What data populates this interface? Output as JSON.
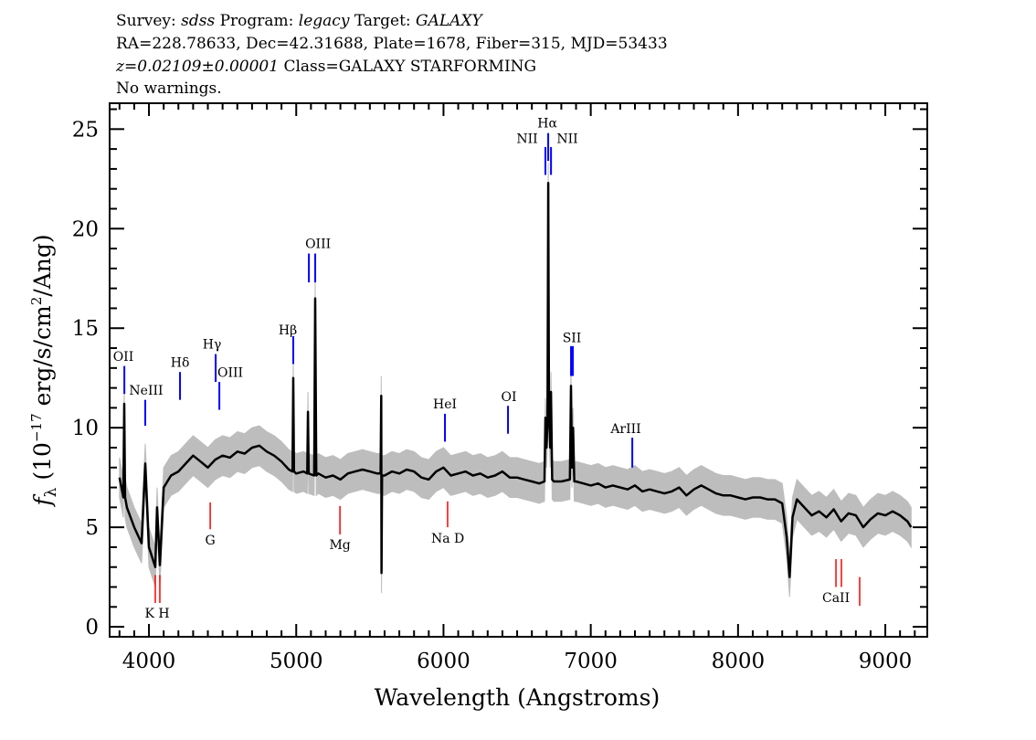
{
  "header": {
    "line1": {
      "a": "Survey: ",
      "b": "sdss",
      "c": " Program: ",
      "d": "legacy",
      "e": " Target: ",
      "f": "GALAXY"
    },
    "line2": "RA=228.78633, Dec=42.31688, Plate=1678, Fiber=315, MJD=53433",
    "line3": {
      "a": "z=0.02109±0.00001",
      "b": " Class=GALAXY STARFORMING"
    },
    "line4": "No warnings."
  },
  "chart_data": {
    "type": "line",
    "xlabel": "Wavelength (Angstroms)",
    "ylabel": {
      "f": "f",
      "sub": "λ",
      "a": " (10",
      "sup1": "−17",
      "b": " erg/s/cm",
      "sup2": "2",
      "c": "/Ang)"
    },
    "xlim": [
      3733,
      9285
    ],
    "ylim": [
      -0.5,
      26.3
    ],
    "xticks": [
      "4000",
      "5000",
      "6000",
      "7000",
      "8000",
      "9000"
    ],
    "yticks": [
      "0",
      "5",
      "10",
      "15",
      "20",
      "25"
    ],
    "x_minor_step": 100,
    "y_minor_step": 1,
    "grid": false,
    "colors": {
      "flux": "#000000",
      "error": "#bdbdbd",
      "emission": "#0000ff",
      "absorption": "#ff0000"
    },
    "error_typical": 1.0,
    "flux": [
      [
        3800,
        7.5
      ],
      [
        3826,
        6.5
      ],
      [
        3832,
        11.2
      ],
      [
        3838,
        6.5
      ],
      [
        3850,
        6.0
      ],
      [
        3900,
        5.0
      ],
      [
        3950,
        4.2
      ],
      [
        3975,
        8.2
      ],
      [
        4000,
        4.0
      ],
      [
        4043,
        3.0
      ],
      [
        4055,
        6.0
      ],
      [
        4074,
        3.1
      ],
      [
        4100,
        7.0
      ],
      [
        4150,
        7.6
      ],
      [
        4200,
        7.8
      ],
      [
        4250,
        8.2
      ],
      [
        4300,
        8.6
      ],
      [
        4350,
        8.3
      ],
      [
        4400,
        8.0
      ],
      [
        4450,
        8.4
      ],
      [
        4500,
        8.6
      ],
      [
        4550,
        8.5
      ],
      [
        4600,
        8.8
      ],
      [
        4650,
        8.7
      ],
      [
        4700,
        9.0
      ],
      [
        4750,
        9.1
      ],
      [
        4800,
        8.8
      ],
      [
        4850,
        8.6
      ],
      [
        4900,
        8.3
      ],
      [
        4950,
        7.9
      ],
      [
        4975,
        7.8
      ],
      [
        4980,
        12.5
      ],
      [
        4985,
        7.8
      ],
      [
        5000,
        7.7
      ],
      [
        5050,
        7.8
      ],
      [
        5075,
        7.7
      ],
      [
        5080,
        10.8
      ],
      [
        5085,
        7.7
      ],
      [
        5122,
        7.6
      ],
      [
        5129,
        16.5
      ],
      [
        5136,
        7.6
      ],
      [
        5150,
        7.7
      ],
      [
        5200,
        7.5
      ],
      [
        5250,
        7.6
      ],
      [
        5300,
        7.4
      ],
      [
        5350,
        7.7
      ],
      [
        5400,
        7.8
      ],
      [
        5450,
        7.9
      ],
      [
        5500,
        7.8
      ],
      [
        5550,
        7.7
      ],
      [
        5573,
        7.7
      ],
      [
        5577,
        11.6
      ],
      [
        5579,
        2.7
      ],
      [
        5583,
        7.6
      ],
      [
        5600,
        7.6
      ],
      [
        5650,
        7.8
      ],
      [
        5700,
        7.7
      ],
      [
        5750,
        7.9
      ],
      [
        5800,
        7.8
      ],
      [
        5850,
        7.5
      ],
      [
        5900,
        7.4
      ],
      [
        5950,
        7.8
      ],
      [
        6000,
        8.0
      ],
      [
        6050,
        7.6
      ],
      [
        6100,
        7.7
      ],
      [
        6150,
        7.8
      ],
      [
        6200,
        7.6
      ],
      [
        6250,
        7.7
      ],
      [
        6300,
        7.5
      ],
      [
        6350,
        7.6
      ],
      [
        6400,
        7.8
      ],
      [
        6450,
        7.5
      ],
      [
        6500,
        7.5
      ],
      [
        6550,
        7.4
      ],
      [
        6600,
        7.3
      ],
      [
        6650,
        7.2
      ],
      [
        6686,
        7.3
      ],
      [
        6692,
        10.5
      ],
      [
        6700,
        9.0
      ],
      [
        6706,
        10.5
      ],
      [
        6711,
        22.3
      ],
      [
        6716,
        11.0
      ],
      [
        6724,
        9.0
      ],
      [
        6730,
        11.8
      ],
      [
        6738,
        7.4
      ],
      [
        6750,
        7.3
      ],
      [
        6800,
        7.3
      ],
      [
        6858,
        7.4
      ],
      [
        6866,
        12.1
      ],
      [
        6872,
        8.0
      ],
      [
        6880,
        10.0
      ],
      [
        6888,
        7.3
      ],
      [
        6900,
        7.3
      ],
      [
        6950,
        7.2
      ],
      [
        7000,
        7.1
      ],
      [
        7050,
        7.2
      ],
      [
        7100,
        7.0
      ],
      [
        7150,
        7.1
      ],
      [
        7200,
        7.0
      ],
      [
        7250,
        6.9
      ],
      [
        7300,
        7.1
      ],
      [
        7350,
        6.8
      ],
      [
        7400,
        6.9
      ],
      [
        7450,
        6.8
      ],
      [
        7500,
        6.7
      ],
      [
        7550,
        6.8
      ],
      [
        7600,
        7.0
      ],
      [
        7650,
        6.6
      ],
      [
        7700,
        6.9
      ],
      [
        7750,
        7.1
      ],
      [
        7800,
        6.9
      ],
      [
        7850,
        6.7
      ],
      [
        7900,
        6.6
      ],
      [
        7950,
        6.6
      ],
      [
        8000,
        6.5
      ],
      [
        8050,
        6.4
      ],
      [
        8100,
        6.5
      ],
      [
        8150,
        6.5
      ],
      [
        8200,
        6.4
      ],
      [
        8250,
        6.4
      ],
      [
        8300,
        6.2
      ],
      [
        8330,
        4.5
      ],
      [
        8350,
        2.5
      ],
      [
        8370,
        5.5
      ],
      [
        8400,
        6.4
      ],
      [
        8450,
        6.0
      ],
      [
        8500,
        5.6
      ],
      [
        8550,
        5.8
      ],
      [
        8600,
        5.5
      ],
      [
        8650,
        5.9
      ],
      [
        8700,
        5.3
      ],
      [
        8750,
        5.7
      ],
      [
        8800,
        5.6
      ],
      [
        8850,
        5.0
      ],
      [
        8900,
        5.4
      ],
      [
        8950,
        5.7
      ],
      [
        9000,
        5.6
      ],
      [
        9050,
        5.8
      ],
      [
        9100,
        5.6
      ],
      [
        9150,
        5.3
      ],
      [
        9175,
        5.0
      ]
    ],
    "line_markers": [
      {
        "wavelength": 3833,
        "flux": [
          11.7,
          13.1
        ],
        "type": "emission"
      },
      {
        "wavelength": 3975,
        "flux": [
          10.1,
          11.4
        ],
        "type": "emission"
      },
      {
        "wavelength": 4211,
        "flux": [
          11.4,
          12.8
        ],
        "type": "emission"
      },
      {
        "wavelength": 4453,
        "flux": [
          12.3,
          13.7
        ],
        "type": "emission"
      },
      {
        "wavelength": 4478,
        "flux": [
          10.9,
          12.3
        ],
        "type": "emission"
      },
      {
        "wavelength": 4980,
        "flux": [
          13.2,
          14.6
        ],
        "type": "emission"
      },
      {
        "wavelength": 5086,
        "flux": [
          17.3,
          18.75
        ],
        "type": "emission"
      },
      {
        "wavelength": 5129,
        "flux": [
          17.3,
          18.75
        ],
        "type": "emission"
      },
      {
        "wavelength": 6010,
        "flux": [
          9.3,
          10.7
        ],
        "type": "emission"
      },
      {
        "wavelength": 6438,
        "flux": [
          9.7,
          11.1
        ],
        "type": "emission"
      },
      {
        "wavelength": 6692,
        "flux": [
          22.7,
          24.1
        ],
        "type": "emission"
      },
      {
        "wavelength": 6711,
        "flux": [
          23.4,
          24.8
        ],
        "type": "emission"
      },
      {
        "wavelength": 6730,
        "flux": [
          22.7,
          24.1
        ],
        "type": "emission"
      },
      {
        "wavelength": 6866,
        "flux": [
          12.6,
          14.1
        ],
        "type": "emission"
      },
      {
        "wavelength": 6878,
        "flux": [
          12.6,
          14.1
        ],
        "type": "emission"
      },
      {
        "wavelength": 7282,
        "flux": [
          8.0,
          9.5
        ],
        "type": "emission"
      },
      {
        "wavelength": 4416,
        "flux": [
          4.9,
          6.25
        ],
        "type": "absorption"
      },
      {
        "wavelength": 4043,
        "flux": [
          1.2,
          2.6
        ],
        "type": "absorption"
      },
      {
        "wavelength": 4074,
        "flux": [
          1.2,
          2.6
        ],
        "type": "absorption"
      },
      {
        "wavelength": 5297,
        "flux": [
          4.64,
          6.07
        ],
        "type": "absorption"
      },
      {
        "wavelength": 6028,
        "flux": [
          5.0,
          6.3
        ],
        "type": "absorption"
      },
      {
        "wavelength": 8665,
        "flux": [
          2.0,
          3.4
        ],
        "type": "absorption"
      },
      {
        "wavelength": 8702,
        "flux": [
          2.0,
          3.4
        ],
        "type": "absorption"
      },
      {
        "wavelength": 8826,
        "flux": [
          1.05,
          2.5
        ],
        "type": "absorption"
      }
    ],
    "line_labels": [
      {
        "text": "OII",
        "wavelength": 3826,
        "flux": 13.37
      },
      {
        "text": "NeIII",
        "wavelength": 3981,
        "flux": 11.67
      },
      {
        "text": "Hδ",
        "wavelength": 4211,
        "flux": 13.05
      },
      {
        "text": "Hγ",
        "wavelength": 4428,
        "flux": 13.97
      },
      {
        "text": "OIII",
        "wavelength": 4552,
        "flux": 12.55
      },
      {
        "text": "Hβ",
        "wavelength": 4943,
        "flux": 14.7
      },
      {
        "text": "OIII",
        "wavelength": 5148,
        "flux": 19.03
      },
      {
        "text": "Hα",
        "wavelength": 6705,
        "flux": 25.09
      },
      {
        "text": "NII",
        "wavelength": 6568,
        "flux": 24.31
      },
      {
        "text": "NII",
        "wavelength": 6841,
        "flux": 24.31
      },
      {
        "text": "SII",
        "wavelength": 6872,
        "flux": 14.29
      },
      {
        "text": "HeI",
        "wavelength": 6010,
        "flux": 10.98
      },
      {
        "text": "OI",
        "wavelength": 6444,
        "flux": 11.35
      },
      {
        "text": "ArIII",
        "wavelength": 7238,
        "flux": 9.74
      },
      {
        "text": "G",
        "wavelength": 4416,
        "flux": 4.14
      },
      {
        "text": "K H",
        "wavelength": 4056,
        "flux": 0.46
      },
      {
        "text": "Mg",
        "wavelength": 5297,
        "flux": 3.91
      },
      {
        "text": "Na  D",
        "wavelength": 6029,
        "flux": 4.23
      },
      {
        "text": "CaII",
        "wavelength": 8665,
        "flux": 1.24
      }
    ]
  }
}
